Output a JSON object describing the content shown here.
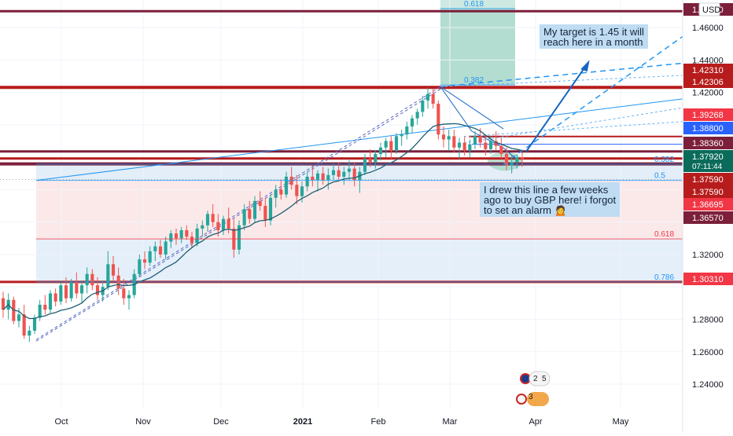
{
  "chart_data": {
    "type": "candlestick",
    "currency": "USD",
    "x_ticks": [
      "Oct",
      "Nov",
      "Dec",
      "2021",
      "Feb",
      "Mar",
      "Apr",
      "May"
    ],
    "y_ticks": [
      "1.46000",
      "1.44000",
      "1.42000",
      "1.32000",
      "1.28000",
      "1.26000",
      "1.24000"
    ],
    "y_range": [
      1.225,
      1.477
    ],
    "current_price": "1.37920",
    "countdown": "07:11:44",
    "price_tags": [
      {
        "label": "1.47010",
        "value": 1.4701,
        "color": "#7b1f3a"
      },
      {
        "label": "1.42310",
        "value": 1.4231,
        "color": "#b71c1c"
      },
      {
        "label": "1.42306",
        "value": 1.42306,
        "color": "#b71c1c"
      },
      {
        "label": "1.39268",
        "value": 1.39268,
        "color": "#f23645"
      },
      {
        "label": "1.38800",
        "value": 1.388,
        "color": "#2962ff"
      },
      {
        "label": "1.38360",
        "value": 1.3836,
        "color": "#7b1f3a"
      },
      {
        "label": "1.37920",
        "value": 1.3792,
        "color": "#0b6b5a"
      },
      {
        "label": "1.37590",
        "value": 1.3759,
        "color": "#b71c1c"
      },
      {
        "label": "1.37590",
        "value": 1.3759,
        "color": "#b71c1c"
      },
      {
        "label": "1.36695",
        "value": 1.36695,
        "color": "#f23645"
      },
      {
        "label": "1.36570",
        "value": 1.3657,
        "color": "#7b1f3a"
      },
      {
        "label": "1.30310",
        "value": 1.3031,
        "color": "#f23645"
      }
    ],
    "fib_levels": [
      {
        "label": "0.618",
        "value": 1.4717
      },
      {
        "label": "0.382",
        "value": 1.4246
      },
      {
        "label": "0.382",
        "value": 1.3757
      },
      {
        "label": "0.5",
        "value": 1.3657
      },
      {
        "label": "0.618",
        "value": 1.3296
      },
      {
        "label": "0.786",
        "value": 1.3031
      }
    ],
    "horizontal_lines": [
      {
        "value": 1.4701,
        "color": "#7b1f3a",
        "width": 3
      },
      {
        "value": 1.42306,
        "color": "#b71c1c",
        "width": 4
      },
      {
        "value": 1.3836,
        "color": "#7b1f3a",
        "width": 3
      },
      {
        "value": 1.3792,
        "color": "#b71c1c",
        "width": 3
      },
      {
        "value": 1.3759,
        "color": "#7b1f3a",
        "width": 4
      },
      {
        "value": 1.3031,
        "color": "#b71c1c",
        "width": 3
      }
    ],
    "candles": [
      [
        1.293,
        1.297,
        1.281,
        1.286
      ],
      [
        1.286,
        1.296,
        1.28,
        1.292
      ],
      [
        1.292,
        1.294,
        1.277,
        1.279
      ],
      [
        1.279,
        1.287,
        1.275,
        1.283
      ],
      [
        1.283,
        1.289,
        1.268,
        1.27
      ],
      [
        1.27,
        1.276,
        1.266,
        1.273
      ],
      [
        1.273,
        1.283,
        1.271,
        1.281
      ],
      [
        1.281,
        1.292,
        1.279,
        1.289
      ],
      [
        1.289,
        1.295,
        1.283,
        1.286
      ],
      [
        1.286,
        1.298,
        1.284,
        1.296
      ],
      [
        1.296,
        1.299,
        1.288,
        1.291
      ],
      [
        1.291,
        1.303,
        1.289,
        1.301
      ],
      [
        1.301,
        1.306,
        1.29,
        1.293
      ],
      [
        1.293,
        1.305,
        1.291,
        1.303
      ],
      [
        1.303,
        1.309,
        1.293,
        1.296
      ],
      [
        1.296,
        1.304,
        1.29,
        1.301
      ],
      [
        1.301,
        1.312,
        1.296,
        1.308
      ],
      [
        1.308,
        1.311,
        1.298,
        1.301
      ],
      [
        1.301,
        1.306,
        1.292,
        1.295
      ],
      [
        1.295,
        1.304,
        1.291,
        1.3
      ],
      [
        1.3,
        1.322,
        1.298,
        1.314
      ],
      [
        1.314,
        1.319,
        1.303,
        1.307
      ],
      [
        1.307,
        1.312,
        1.295,
        1.299
      ],
      [
        1.299,
        1.305,
        1.289,
        1.293
      ],
      [
        1.293,
        1.298,
        1.286,
        1.295
      ],
      [
        1.295,
        1.311,
        1.293,
        1.308
      ],
      [
        1.308,
        1.32,
        1.306,
        1.317
      ],
      [
        1.317,
        1.322,
        1.311,
        1.315
      ],
      [
        1.315,
        1.325,
        1.313,
        1.322
      ],
      [
        1.322,
        1.328,
        1.316,
        1.325
      ],
      [
        1.325,
        1.329,
        1.318,
        1.32
      ],
      [
        1.32,
        1.331,
        1.317,
        1.328
      ],
      [
        1.328,
        1.335,
        1.324,
        1.333
      ],
      [
        1.333,
        1.336,
        1.326,
        1.33
      ],
      [
        1.33,
        1.337,
        1.327,
        1.335
      ],
      [
        1.335,
        1.338,
        1.329,
        1.331
      ],
      [
        1.331,
        1.334,
        1.324,
        1.327
      ],
      [
        1.327,
        1.339,
        1.325,
        1.336
      ],
      [
        1.336,
        1.341,
        1.331,
        1.338
      ],
      [
        1.338,
        1.347,
        1.334,
        1.345
      ],
      [
        1.345,
        1.351,
        1.337,
        1.34
      ],
      [
        1.34,
        1.345,
        1.331,
        1.335
      ],
      [
        1.335,
        1.344,
        1.332,
        1.342
      ],
      [
        1.342,
        1.349,
        1.333,
        1.336
      ],
      [
        1.336,
        1.342,
        1.318,
        1.323
      ],
      [
        1.323,
        1.341,
        1.32,
        1.338
      ],
      [
        1.338,
        1.351,
        1.335,
        1.348
      ],
      [
        1.348,
        1.353,
        1.339,
        1.342
      ],
      [
        1.342,
        1.356,
        1.34,
        1.353
      ],
      [
        1.353,
        1.359,
        1.347,
        1.35
      ],
      [
        1.35,
        1.355,
        1.337,
        1.341
      ],
      [
        1.341,
        1.357,
        1.338,
        1.355
      ],
      [
        1.355,
        1.363,
        1.349,
        1.36
      ],
      [
        1.36,
        1.366,
        1.354,
        1.357
      ],
      [
        1.357,
        1.371,
        1.355,
        1.368
      ],
      [
        1.368,
        1.374,
        1.36,
        1.363
      ],
      [
        1.363,
        1.369,
        1.351,
        1.356
      ],
      [
        1.356,
        1.365,
        1.352,
        1.362
      ],
      [
        1.362,
        1.371,
        1.359,
        1.368
      ],
      [
        1.368,
        1.375,
        1.362,
        1.366
      ],
      [
        1.366,
        1.372,
        1.359,
        1.37
      ],
      [
        1.37,
        1.374,
        1.363,
        1.366
      ],
      [
        1.366,
        1.373,
        1.36,
        1.369
      ],
      [
        1.369,
        1.376,
        1.366,
        1.372
      ],
      [
        1.372,
        1.377,
        1.365,
        1.368
      ],
      [
        1.368,
        1.374,
        1.363,
        1.371
      ],
      [
        1.371,
        1.378,
        1.366,
        1.373
      ],
      [
        1.373,
        1.377,
        1.362,
        1.366
      ],
      [
        1.366,
        1.374,
        1.358,
        1.371
      ],
      [
        1.371,
        1.382,
        1.369,
        1.379
      ],
      [
        1.379,
        1.385,
        1.374,
        1.377
      ],
      [
        1.377,
        1.384,
        1.373,
        1.382
      ],
      [
        1.382,
        1.389,
        1.378,
        1.386
      ],
      [
        1.386,
        1.392,
        1.38,
        1.39
      ],
      [
        1.39,
        1.393,
        1.379,
        1.384
      ],
      [
        1.384,
        1.395,
        1.382,
        1.393
      ],
      [
        1.393,
        1.397,
        1.387,
        1.394
      ],
      [
        1.394,
        1.402,
        1.391,
        1.399
      ],
      [
        1.399,
        1.406,
        1.395,
        1.404
      ],
      [
        1.404,
        1.41,
        1.4,
        1.408
      ],
      [
        1.408,
        1.418,
        1.405,
        1.415
      ],
      [
        1.415,
        1.423,
        1.41,
        1.419
      ],
      [
        1.419,
        1.422,
        1.41,
        1.413
      ],
      [
        1.413,
        1.415,
        1.391,
        1.394
      ],
      [
        1.394,
        1.399,
        1.386,
        1.391
      ],
      [
        1.391,
        1.397,
        1.384,
        1.393
      ],
      [
        1.393,
        1.397,
        1.383,
        1.386
      ],
      [
        1.386,
        1.392,
        1.379,
        1.389
      ],
      [
        1.389,
        1.393,
        1.381,
        1.384
      ],
      [
        1.384,
        1.391,
        1.38,
        1.388
      ],
      [
        1.388,
        1.396,
        1.385,
        1.393
      ],
      [
        1.393,
        1.398,
        1.386,
        1.389
      ],
      [
        1.389,
        1.394,
        1.381,
        1.385
      ],
      [
        1.385,
        1.393,
        1.382,
        1.39
      ],
      [
        1.39,
        1.396,
        1.384,
        1.387
      ],
      [
        1.387,
        1.392,
        1.379,
        1.382
      ],
      [
        1.382,
        1.386,
        1.372,
        1.375
      ],
      [
        1.375,
        1.381,
        1.37,
        1.377
      ],
      [
        1.377,
        1.382,
        1.373,
        1.38
      ],
      [
        1.38,
        1.383,
        1.374,
        1.379
      ]
    ],
    "price_arrow_value": 1.45
  },
  "notes": {
    "target": "My target is 1.45 it will\nreach here in a month",
    "line": "I drew this line a few weeks\nago to buy GBP here! i forgot\nto set an alarm 🙍"
  },
  "badges": {
    "top_a": "2",
    "top_b": "5",
    "bottom": "3"
  },
  "colors": {
    "up": "#26a69a",
    "down": "#ef5350",
    "ma": "#1f5f73",
    "fib_blue": "#2196f3",
    "fib_red": "#f23645"
  }
}
